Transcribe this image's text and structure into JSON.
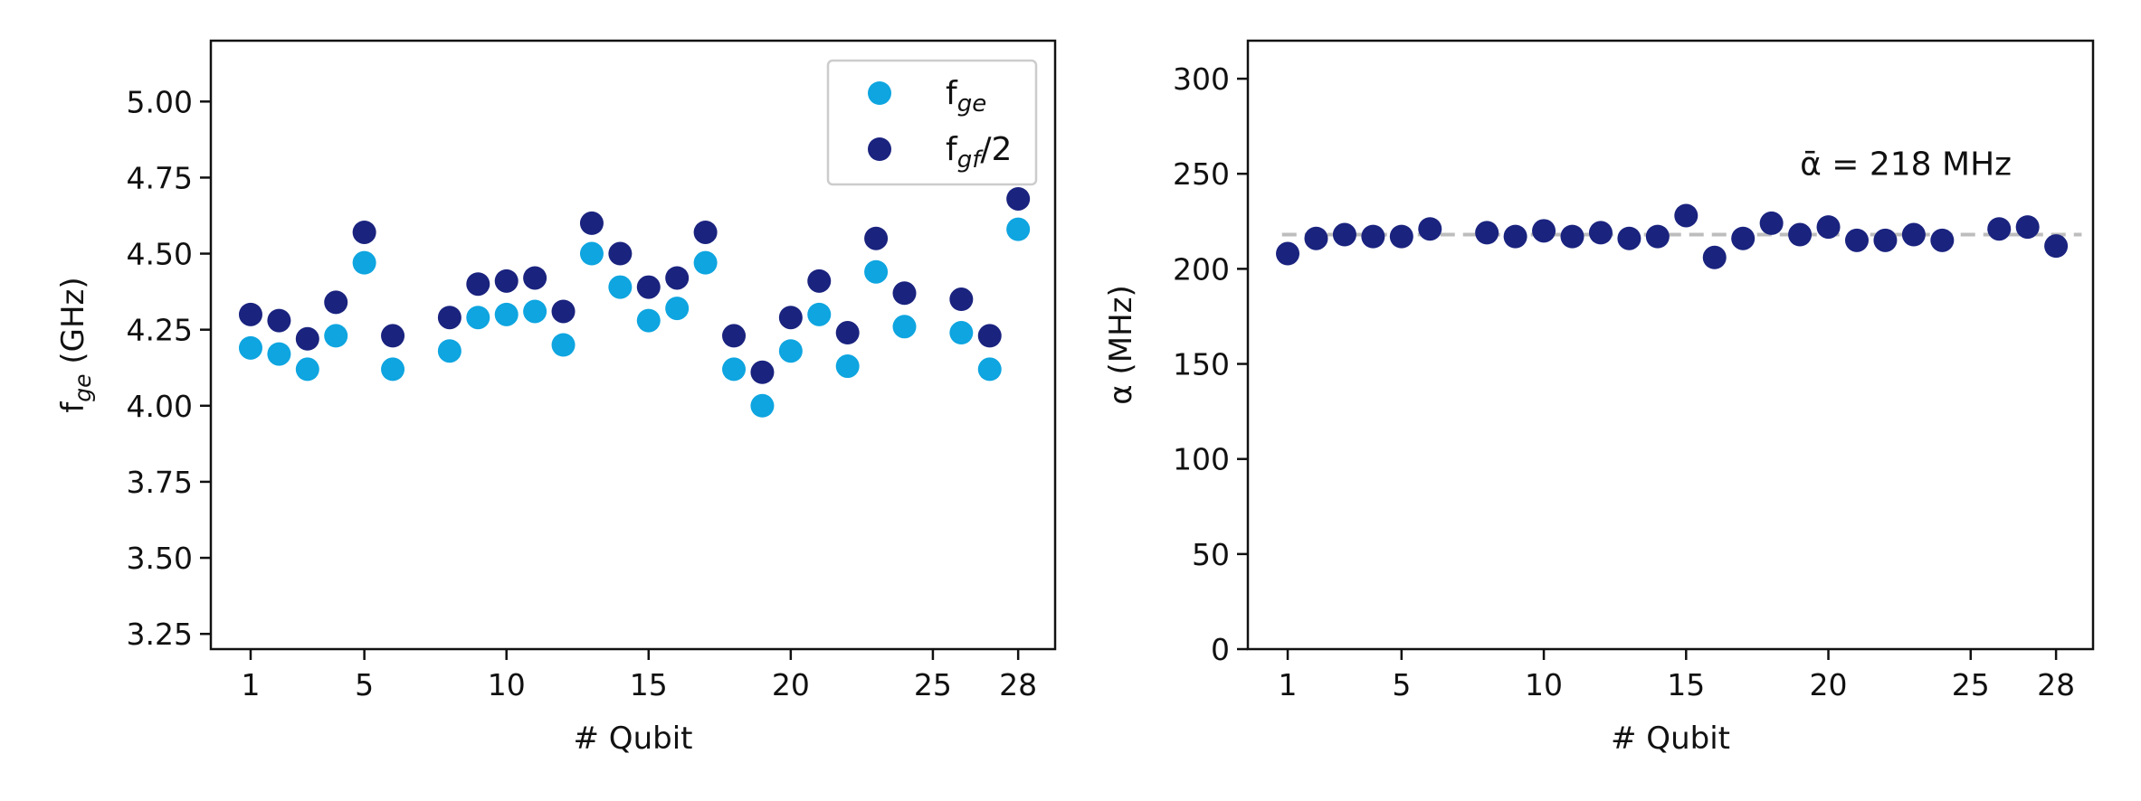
{
  "chart_data": [
    {
      "type": "scatter",
      "xlabel": "# Qubit",
      "ylabel": "f_ge (GHz)",
      "ylabel_main": "f",
      "ylabel_sub": "ge",
      "ylabel_tail": " (GHz)",
      "xlim": [
        -0.4,
        29.3
      ],
      "ylim": [
        3.2,
        5.2
      ],
      "xticks": [
        1,
        5,
        10,
        15,
        20,
        25,
        28
      ],
      "yticks": [
        3.25,
        3.5,
        3.75,
        4.0,
        4.25,
        4.5,
        4.75,
        5.0
      ],
      "ytick_labels": [
        "3.25",
        "3.50",
        "3.75",
        "4.00",
        "4.25",
        "4.50",
        "4.75",
        "5.00"
      ],
      "legend_position": "top-right",
      "series": [
        {
          "name": "f_ge",
          "legend_main": "f",
          "legend_sub": "ge",
          "legend_tail": "",
          "color": "#0EA5E0",
          "x": [
            1,
            2,
            3,
            4,
            5,
            6,
            8,
            9,
            10,
            11,
            12,
            13,
            14,
            15,
            16,
            17,
            18,
            19,
            20,
            21,
            22,
            23,
            24,
            26,
            27,
            28
          ],
          "y": [
            4.19,
            4.17,
            4.12,
            4.23,
            4.47,
            4.12,
            4.18,
            4.29,
            4.3,
            4.31,
            4.2,
            4.5,
            4.39,
            4.28,
            4.32,
            4.47,
            4.12,
            4.0,
            4.18,
            4.3,
            4.13,
            4.44,
            4.26,
            4.24,
            4.12,
            4.58
          ]
        },
        {
          "name": "f_gf/2",
          "legend_main": "f",
          "legend_sub": "gf",
          "legend_tail": "/2",
          "color": "#1A237E",
          "x": [
            1,
            2,
            3,
            4,
            5,
            6,
            8,
            9,
            10,
            11,
            12,
            13,
            14,
            15,
            16,
            17,
            18,
            19,
            20,
            21,
            22,
            23,
            24,
            26,
            27,
            28
          ],
          "y": [
            4.3,
            4.28,
            4.22,
            4.34,
            4.57,
            4.23,
            4.29,
            4.4,
            4.41,
            4.42,
            4.31,
            4.6,
            4.5,
            4.39,
            4.42,
            4.57,
            4.23,
            4.11,
            4.29,
            4.41,
            4.24,
            4.55,
            4.37,
            4.35,
            4.23,
            4.68
          ]
        }
      ]
    },
    {
      "type": "scatter",
      "xlabel": "# Qubit",
      "ylabel": "α (MHz)",
      "xlim": [
        -0.4,
        29.3
      ],
      "ylim": [
        0,
        320
      ],
      "xticks": [
        1,
        5,
        10,
        15,
        20,
        25,
        28
      ],
      "yticks": [
        0,
        50,
        100,
        150,
        200,
        250,
        300
      ],
      "series": [
        {
          "name": "",
          "color": "#1A237E",
          "x": [
            1,
            2,
            3,
            4,
            5,
            6,
            8,
            9,
            10,
            11,
            12,
            13,
            14,
            15,
            16,
            17,
            18,
            19,
            20,
            21,
            22,
            23,
            24,
            26,
            27,
            28
          ],
          "y": [
            208,
            216,
            218,
            217,
            217,
            221,
            219,
            217,
            220,
            217,
            219,
            216,
            217,
            228,
            206,
            216,
            224,
            218,
            222,
            215,
            215,
            218,
            215,
            221,
            222,
            212
          ]
        }
      ],
      "reference_line": {
        "y": 218,
        "color": "#BDBDBD",
        "style": "dashed"
      },
      "annotation": "ᾱ = 218 MHz",
      "annotation_x": 19.0,
      "annotation_y": 255
    }
  ]
}
